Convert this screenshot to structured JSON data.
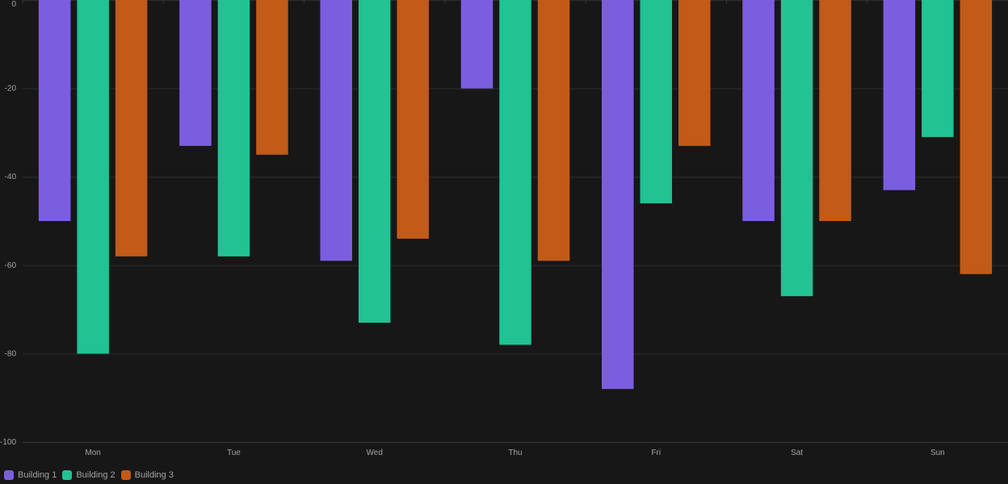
{
  "chart_data": {
    "type": "bar",
    "categories": [
      "Mon",
      "Tue",
      "Wed",
      "Thu",
      "Fri",
      "Sat",
      "Sun"
    ],
    "series": [
      {
        "name": "Building 1",
        "color": "#7b5ee0",
        "values": [
          -50,
          -33,
          -59,
          -20,
          -88,
          -50,
          -43
        ]
      },
      {
        "name": "Building 2",
        "color": "#22c293",
        "values": [
          -80,
          -58,
          -73,
          -78,
          -46,
          -67,
          -31
        ]
      },
      {
        "name": "Building 3",
        "color": "#c25a18",
        "values": [
          -58,
          -35,
          -54,
          -59,
          -33,
          -50,
          -62
        ]
      }
    ],
    "ylim": [
      -100,
      0
    ],
    "yticks": [
      0,
      -20,
      -40,
      -60,
      -80,
      -100
    ],
    "grid": true,
    "legend_position": "bottom-left"
  }
}
